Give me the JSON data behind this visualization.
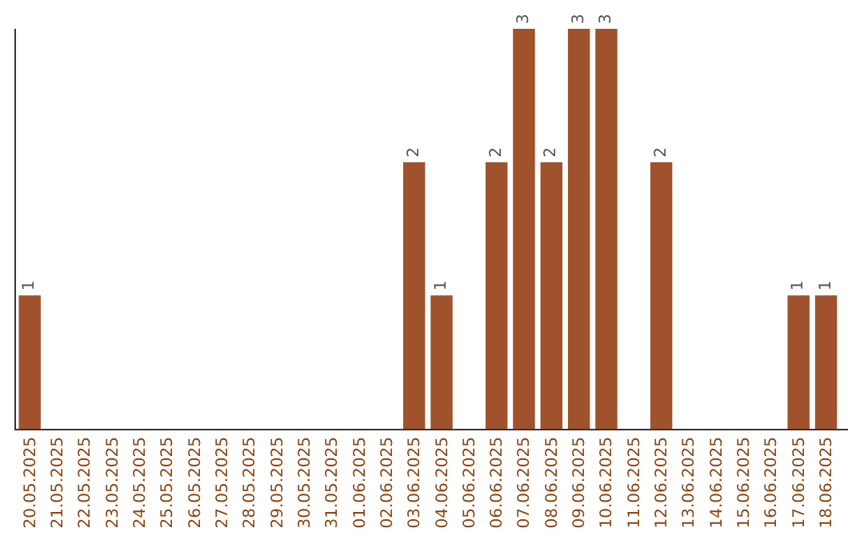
{
  "chart_data": {
    "type": "bar",
    "categories": [
      "20.05.2025",
      "21.05.2025",
      "22.05.2025",
      "23.05.2025",
      "24.05.2025",
      "25.05.2025",
      "26.05.2025",
      "27.05.2025",
      "28.05.2025",
      "29.05.2025",
      "30.05.2025",
      "31.05.2025",
      "01.06.2025",
      "02.06.2025",
      "03.06.2025",
      "04.06.2025",
      "05.06.2025",
      "06.06.2025",
      "07.06.2025",
      "08.06.2025",
      "09.06.2025",
      "10.06.2025",
      "11.06.2025",
      "12.06.2025",
      "13.06.2025",
      "14.06.2025",
      "15.06.2025",
      "16.06.2025",
      "17.06.2025",
      "18.06.2025"
    ],
    "values": [
      1,
      0,
      0,
      0,
      0,
      0,
      0,
      0,
      0,
      0,
      0,
      0,
      0,
      0,
      2,
      1,
      0,
      2,
      3,
      2,
      3,
      3,
      0,
      2,
      0,
      0,
      0,
      0,
      1,
      1
    ],
    "value_labels": [
      "1",
      null,
      null,
      null,
      null,
      null,
      null,
      null,
      null,
      null,
      null,
      null,
      null,
      null,
      "2",
      "1",
      null,
      "2",
      "3",
      "2",
      "3",
      "3",
      null,
      "2",
      null,
      null,
      null,
      null,
      "1",
      "1"
    ],
    "color": "#a0522d",
    "tick_labels": "x"
  }
}
